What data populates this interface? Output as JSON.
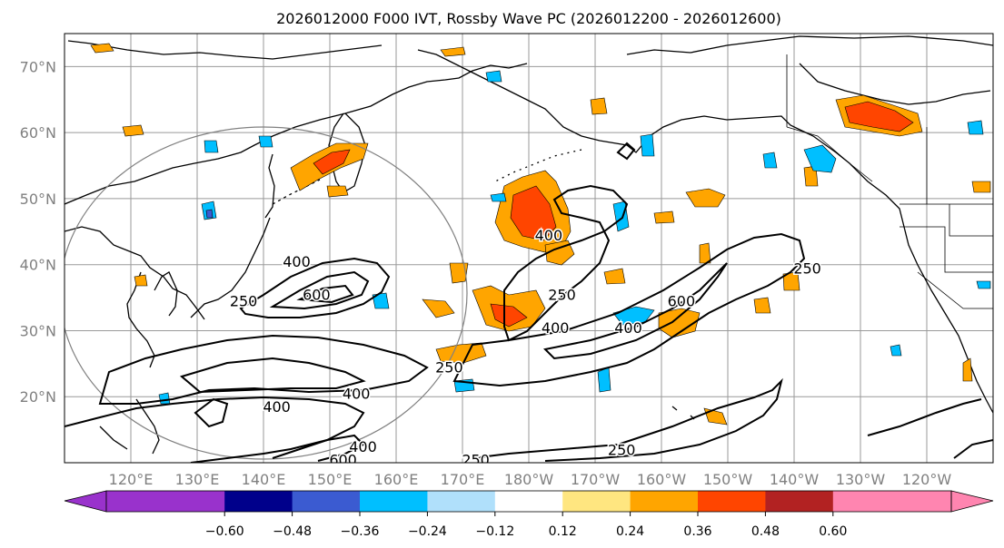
{
  "title": "2026012000 F000 IVT, Rossby Wave PC (2026012200 - 2026012600)",
  "lat_labels": [
    "70°N",
    "60°N",
    "50°N",
    "40°N",
    "30°N",
    "20°N"
  ],
  "lon_labels": [
    "120°E",
    "130°E",
    "140°E",
    "150°E",
    "160°E",
    "170°E",
    "180°W",
    "170°W",
    "160°W",
    "150°W",
    "140°W",
    "130°W",
    "120°W"
  ],
  "contour_labels": [
    {
      "text": "400",
      "lon": 145,
      "lat": 40.5
    },
    {
      "text": "600",
      "lon": 148,
      "lat": 35.5
    },
    {
      "text": "250",
      "lon": 137,
      "lat": 34.5
    },
    {
      "text": "400",
      "lon": 183,
      "lat": 44.5
    },
    {
      "text": "250",
      "lon": 185,
      "lat": 35.5
    },
    {
      "text": "400",
      "lon": 184,
      "lat": 30.5
    },
    {
      "text": "400",
      "lon": 195,
      "lat": 30.5
    },
    {
      "text": "600",
      "lon": 203,
      "lat": 34.5
    },
    {
      "text": "250",
      "lon": 222,
      "lat": 39.5
    },
    {
      "text": "250",
      "lon": 168,
      "lat": 24.5
    },
    {
      "text": "400",
      "lon": 154,
      "lat": 20.5
    },
    {
      "text": "400",
      "lon": 142,
      "lat": 18.5
    },
    {
      "text": "400",
      "lon": 155,
      "lat": 12.5
    },
    {
      "text": "600",
      "lon": 152,
      "lat": 10.5
    },
    {
      "text": "250",
      "lon": 172,
      "lat": 10.5
    },
    {
      "text": "250",
      "lon": 194,
      "lat": 12.0
    }
  ],
  "colorbar": {
    "ticks": [
      "−0.60",
      "−0.48",
      "−0.36",
      "−0.24",
      "−0.12",
      "0.12",
      "0.24",
      "0.36",
      "0.48",
      "0.60"
    ],
    "colors": [
      "#9932cc",
      "#00008b",
      "#3b5bd1",
      "#00bfff",
      "#b0e0fb",
      "#ffffff",
      "#ffe680",
      "#ffa500",
      "#ff4500",
      "#b22222",
      "#ff85b0"
    ]
  }
}
